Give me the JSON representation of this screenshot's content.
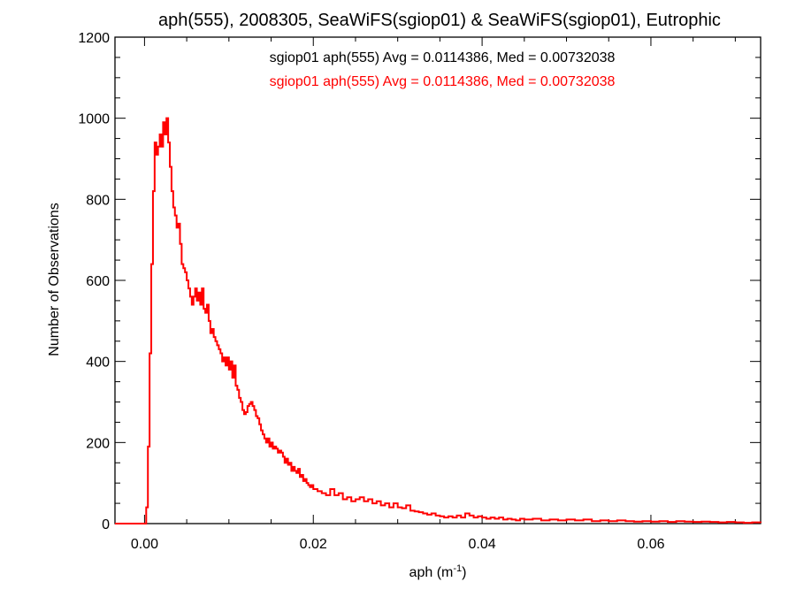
{
  "chart_data": {
    "type": "histogram",
    "title": "aph(555), 2008305, SeaWiFS(sgiop01) & SeaWiFS(sgiop01), Eutrophic",
    "xlabel": "aph (m",
    "xlabel_exponent": "-1",
    "xlabel_suffix": ")",
    "ylabel": "Number of Observations",
    "xlim": [
      -0.0035,
      0.073
    ],
    "ylim": [
      0,
      1200
    ],
    "xticks": [
      0.0,
      0.02,
      0.04,
      0.06
    ],
    "xtick_labels": [
      "0.00",
      "0.02",
      "0.04",
      "0.06"
    ],
    "yticks": [
      0,
      200,
      400,
      600,
      800,
      1000,
      1200
    ],
    "ytick_labels": [
      "0",
      "200",
      "400",
      "600",
      "800",
      "1000",
      "1200"
    ],
    "grid": false,
    "legend": [
      {
        "text": "sgiop01 aph(555) Avg = 0.0114386, Med = 0.00732038",
        "color": "#000000"
      },
      {
        "text": "sgiop01 aph(555) Avg = 0.0114386, Med = 0.00732038",
        "color": "#ff0000"
      }
    ],
    "series": [
      {
        "color": "#ff0000",
        "step": "mid",
        "points": [
          [
            -0.0035,
            0
          ],
          [
            0.0,
            0
          ],
          [
            0.0002,
            40
          ],
          [
            0.0004,
            190
          ],
          [
            0.0006,
            420
          ],
          [
            0.0008,
            640
          ],
          [
            0.001,
            820
          ],
          [
            0.0012,
            940
          ],
          [
            0.0014,
            910
          ],
          [
            0.0016,
            930
          ],
          [
            0.0018,
            960
          ],
          [
            0.002,
            930
          ],
          [
            0.0022,
            990
          ],
          [
            0.0024,
            960
          ],
          [
            0.0026,
            1000
          ],
          [
            0.0028,
            940
          ],
          [
            0.003,
            880
          ],
          [
            0.0032,
            820
          ],
          [
            0.0034,
            780
          ],
          [
            0.0036,
            760
          ],
          [
            0.0038,
            730
          ],
          [
            0.004,
            740
          ],
          [
            0.0042,
            690
          ],
          [
            0.0044,
            640
          ],
          [
            0.0046,
            630
          ],
          [
            0.0048,
            620
          ],
          [
            0.005,
            600
          ],
          [
            0.0052,
            580
          ],
          [
            0.0054,
            560
          ],
          [
            0.0056,
            540
          ],
          [
            0.0058,
            560
          ],
          [
            0.006,
            580
          ],
          [
            0.0062,
            550
          ],
          [
            0.0064,
            570
          ],
          [
            0.0066,
            540
          ],
          [
            0.0068,
            580
          ],
          [
            0.007,
            530
          ],
          [
            0.0072,
            520
          ],
          [
            0.0074,
            540
          ],
          [
            0.0076,
            500
          ],
          [
            0.0078,
            470
          ],
          [
            0.008,
            480
          ],
          [
            0.0082,
            460
          ],
          [
            0.0084,
            450
          ],
          [
            0.0086,
            440
          ],
          [
            0.0088,
            430
          ],
          [
            0.009,
            420
          ],
          [
            0.0092,
            400
          ],
          [
            0.0094,
            410
          ],
          [
            0.0096,
            390
          ],
          [
            0.0098,
            410
          ],
          [
            0.01,
            380
          ],
          [
            0.0102,
            400
          ],
          [
            0.0104,
            360
          ],
          [
            0.0106,
            390
          ],
          [
            0.0108,
            340
          ],
          [
            0.011,
            330
          ],
          [
            0.0112,
            310
          ],
          [
            0.0114,
            300
          ],
          [
            0.0116,
            280
          ],
          [
            0.0118,
            270
          ],
          [
            0.012,
            275
          ],
          [
            0.0122,
            290
          ],
          [
            0.0124,
            295
          ],
          [
            0.0126,
            300
          ],
          [
            0.0128,
            290
          ],
          [
            0.013,
            280
          ],
          [
            0.0132,
            265
          ],
          [
            0.0134,
            260
          ],
          [
            0.0136,
            245
          ],
          [
            0.0138,
            230
          ],
          [
            0.014,
            220
          ],
          [
            0.0142,
            210
          ],
          [
            0.0144,
            200
          ],
          [
            0.0146,
            210
          ],
          [
            0.0148,
            190
          ],
          [
            0.015,
            200
          ],
          [
            0.0152,
            185
          ],
          [
            0.0154,
            190
          ],
          [
            0.0156,
            185
          ],
          [
            0.0158,
            175
          ],
          [
            0.016,
            180
          ],
          [
            0.0162,
            175
          ],
          [
            0.0164,
            165
          ],
          [
            0.0166,
            150
          ],
          [
            0.0168,
            160
          ],
          [
            0.017,
            145
          ],
          [
            0.0172,
            150
          ],
          [
            0.0174,
            130
          ],
          [
            0.0176,
            140
          ],
          [
            0.0178,
            130
          ],
          [
            0.018,
            125
          ],
          [
            0.0182,
            135
          ],
          [
            0.0184,
            115
          ],
          [
            0.0186,
            120
          ],
          [
            0.0188,
            105
          ],
          [
            0.019,
            110
          ],
          [
            0.0192,
            100
          ],
          [
            0.0194,
            95
          ],
          [
            0.0196,
            90
          ],
          [
            0.0198,
            95
          ],
          [
            0.02,
            85
          ],
          [
            0.0205,
            80
          ],
          [
            0.021,
            75
          ],
          [
            0.0215,
            70
          ],
          [
            0.022,
            85
          ],
          [
            0.0225,
            70
          ],
          [
            0.023,
            75
          ],
          [
            0.0235,
            60
          ],
          [
            0.024,
            65
          ],
          [
            0.0245,
            55
          ],
          [
            0.025,
            60
          ],
          [
            0.0255,
            65
          ],
          [
            0.026,
            55
          ],
          [
            0.0265,
            60
          ],
          [
            0.027,
            50
          ],
          [
            0.0275,
            55
          ],
          [
            0.028,
            45
          ],
          [
            0.0285,
            50
          ],
          [
            0.029,
            40
          ],
          [
            0.0295,
            50
          ],
          [
            0.03,
            40
          ],
          [
            0.0305,
            38
          ],
          [
            0.031,
            45
          ],
          [
            0.0315,
            32
          ],
          [
            0.032,
            30
          ],
          [
            0.0325,
            28
          ],
          [
            0.033,
            25
          ],
          [
            0.0335,
            22
          ],
          [
            0.034,
            25
          ],
          [
            0.0345,
            20
          ],
          [
            0.035,
            18
          ],
          [
            0.0355,
            15
          ],
          [
            0.036,
            18
          ],
          [
            0.0365,
            15
          ],
          [
            0.037,
            20
          ],
          [
            0.0375,
            15
          ],
          [
            0.038,
            25
          ],
          [
            0.0385,
            20
          ],
          [
            0.039,
            15
          ],
          [
            0.0395,
            18
          ],
          [
            0.04,
            15
          ],
          [
            0.0405,
            12
          ],
          [
            0.041,
            15
          ],
          [
            0.0415,
            12
          ],
          [
            0.042,
            15
          ],
          [
            0.0425,
            10
          ],
          [
            0.043,
            12
          ],
          [
            0.0435,
            10
          ],
          [
            0.044,
            8
          ],
          [
            0.0445,
            12
          ],
          [
            0.045,
            10
          ],
          [
            0.046,
            12
          ],
          [
            0.047,
            8
          ],
          [
            0.048,
            10
          ],
          [
            0.049,
            8
          ],
          [
            0.05,
            10
          ],
          [
            0.051,
            8
          ],
          [
            0.052,
            10
          ],
          [
            0.053,
            6
          ],
          [
            0.054,
            8
          ],
          [
            0.055,
            6
          ],
          [
            0.056,
            8
          ],
          [
            0.057,
            6
          ],
          [
            0.058,
            5
          ],
          [
            0.059,
            6
          ],
          [
            0.06,
            5
          ],
          [
            0.061,
            6
          ],
          [
            0.062,
            4
          ],
          [
            0.063,
            6
          ],
          [
            0.064,
            5
          ],
          [
            0.065,
            4
          ],
          [
            0.066,
            5
          ],
          [
            0.067,
            4
          ],
          [
            0.068,
            3
          ],
          [
            0.069,
            4
          ],
          [
            0.07,
            3
          ],
          [
            0.071,
            2
          ],
          [
            0.072,
            3
          ],
          [
            0.073,
            2
          ]
        ]
      }
    ]
  }
}
